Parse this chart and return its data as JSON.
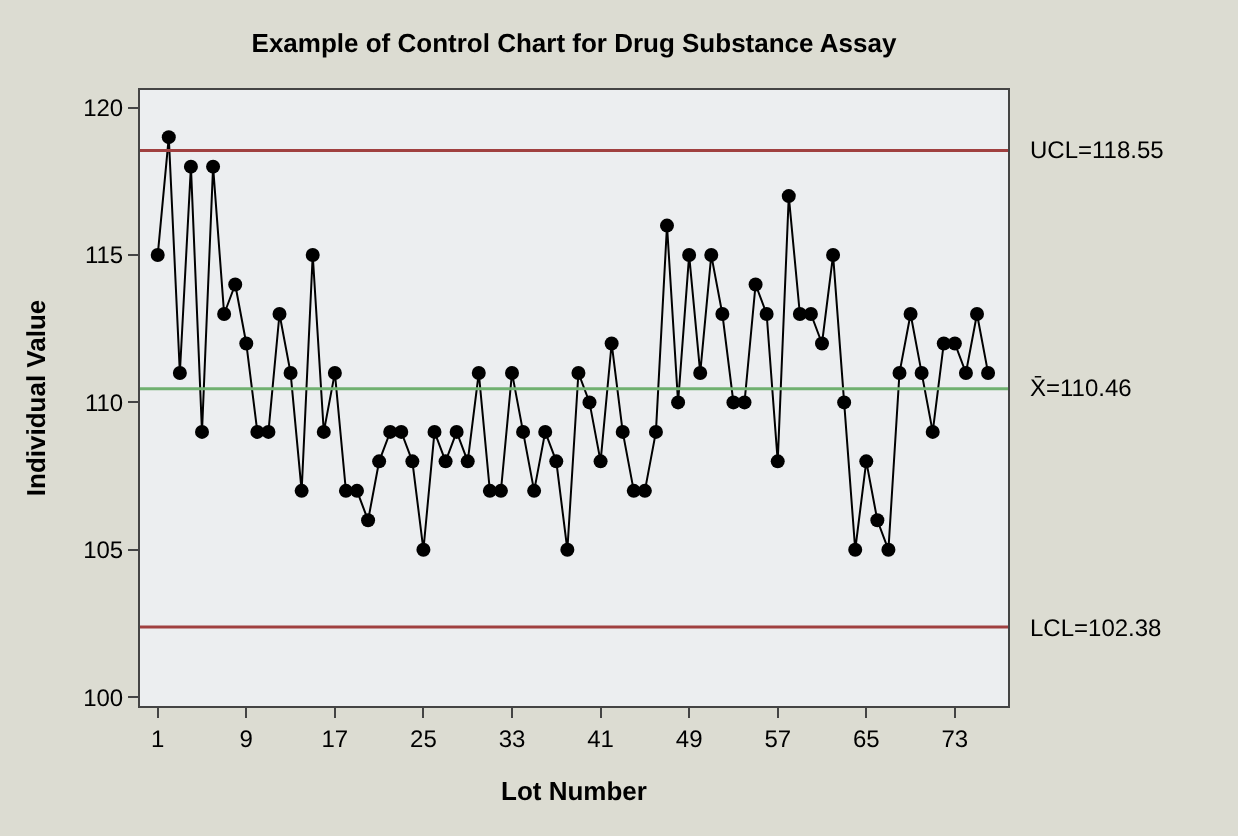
{
  "chart_data": {
    "type": "line",
    "title": "Example of Control Chart for Drug Substance Assay",
    "xlabel": "Lot Number",
    "ylabel": "Individual Value",
    "x": [
      1,
      2,
      3,
      4,
      5,
      6,
      7,
      8,
      9,
      10,
      11,
      12,
      13,
      14,
      15,
      16,
      17,
      18,
      19,
      20,
      21,
      22,
      23,
      24,
      25,
      26,
      27,
      28,
      29,
      30,
      31,
      32,
      33,
      34,
      35,
      36,
      37,
      38,
      39,
      40,
      41,
      42,
      43,
      44,
      45,
      46,
      47,
      48,
      49,
      50,
      51,
      52,
      53,
      54,
      55,
      56,
      57,
      58,
      59,
      60,
      61,
      62,
      63,
      64,
      65,
      66,
      67,
      68,
      69,
      70,
      71,
      72,
      73,
      74,
      75,
      76
    ],
    "series": [
      {
        "color": "#000000",
        "values": [
          115,
          119,
          111,
          118,
          109,
          118,
          113,
          114,
          112,
          109,
          109,
          113,
          111,
          107,
          115,
          109,
          111,
          107,
          107,
          106,
          108,
          109,
          109,
          108,
          105,
          109,
          108,
          109,
          108,
          111,
          107,
          107,
          111,
          109,
          107,
          109,
          108,
          105,
          111,
          110,
          108,
          112,
          109,
          107,
          107,
          109,
          116,
          110,
          115,
          111,
          115,
          113,
          110,
          110,
          114,
          113,
          108,
          117,
          113,
          113,
          112,
          115,
          110,
          105,
          108,
          106,
          105,
          111,
          113,
          111,
          109,
          112,
          112,
          111,
          113,
          111
        ]
      }
    ],
    "xlim": [
      -0.6,
      77.8
    ],
    "xticks": [
      1,
      9,
      17,
      25,
      33,
      41,
      49,
      57,
      65,
      73
    ],
    "ylim": [
      99.7,
      120.6
    ],
    "yticks": [
      100,
      105,
      110,
      115,
      120
    ],
    "ref_lines": [
      {
        "axis": "y",
        "value": 118.55,
        "label": "UCL=118.55",
        "color": "#a04040"
      },
      {
        "axis": "y",
        "value": 110.46,
        "label": "X̄=110.46",
        "color": "#70b070"
      },
      {
        "axis": "y",
        "value": 102.38,
        "label": "LCL=102.38",
        "color": "#a04040"
      }
    ],
    "marker": "circle",
    "line_style": "solid",
    "grid": false
  }
}
